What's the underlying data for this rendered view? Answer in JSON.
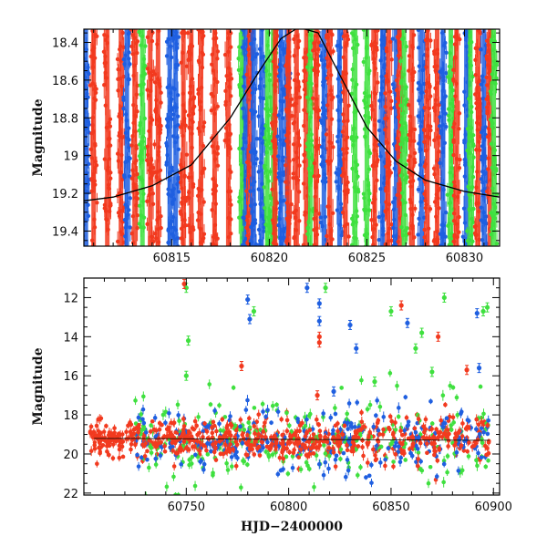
{
  "chart_data": [
    {
      "type": "scatter",
      "title": "",
      "xlabel": "",
      "ylabel": "Magnitude",
      "xlim": [
        60810.5,
        60831.8
      ],
      "ylim": [
        19.48,
        18.33
      ],
      "y_inverted": true,
      "x_ticks": [
        60815,
        60820,
        60825,
        60830
      ],
      "x_tick_labels": [
        "60815",
        "60820",
        "60825",
        "60830"
      ],
      "y_ticks": [
        18.4,
        18.6,
        18.8,
        19,
        19.2,
        19.4
      ],
      "y_tick_labels": [
        "18.4",
        "18.6",
        "18.8",
        "19",
        "19.2",
        "19.4"
      ],
      "model_curve": {
        "color": "#000000",
        "points": [
          [
            60810.5,
            19.24
          ],
          [
            60812,
            19.22
          ],
          [
            60814,
            19.16
          ],
          [
            60816,
            19.05
          ],
          [
            60818,
            18.8
          ],
          [
            60819.5,
            18.55
          ],
          [
            60820.6,
            18.38
          ],
          [
            60821.5,
            18.32
          ],
          [
            60822.5,
            18.35
          ],
          [
            60823.5,
            18.55
          ],
          [
            60825,
            18.85
          ],
          [
            60826.5,
            19.03
          ],
          [
            60828,
            19.13
          ],
          [
            60830,
            19.19
          ],
          [
            60831.8,
            19.22
          ]
        ]
      },
      "series": [
        {
          "name": "",
          "color": "#1f5fe0",
          "x": [
            60810.6,
            60812.7,
            60814.9,
            60815.2,
            60818.8,
            60819.2,
            60819.6,
            60820.6,
            60820.9,
            60822.8,
            60823.6,
            60825.8,
            60826.5,
            60827.8,
            60828.9,
            60830.1,
            60831.0
          ]
        },
        {
          "name": "",
          "color": "#3fe03f",
          "x": [
            60813.5,
            60818.6,
            60819.9,
            60820.2,
            60822.1,
            60824.4,
            60825.0,
            60826.9,
            60829.3,
            60830.3,
            60831.5
          ]
        },
        {
          "name": "",
          "color": "#f23a1f",
          "x": [
            60811.0,
            60811.7,
            60812.4,
            60813.1,
            60813.9,
            60814.3,
            60815.6,
            60816.0,
            60816.5,
            60817.2,
            60817.9,
            60819.0,
            60820.3,
            60821.0,
            60821.4,
            60821.9,
            60822.4,
            60823.1,
            60823.9,
            60825.4,
            60826.1,
            60826.7,
            60827.3,
            60828.1,
            60828.6,
            60829.6,
            60830.7,
            60831.3
          ]
        }
      ]
    },
    {
      "type": "scatter",
      "title": "",
      "xlabel": "HJD−2400000",
      "ylabel": "Magnitude",
      "xlim": [
        60700,
        60903
      ],
      "ylim": [
        22.1,
        11.0
      ],
      "y_inverted": true,
      "x_ticks": [
        60750,
        60800,
        60850,
        60900
      ],
      "x_tick_labels": [
        "60750",
        "60800",
        "60850",
        "60900"
      ],
      "y_ticks": [
        12,
        14,
        16,
        18,
        20,
        22
      ],
      "y_tick_labels": [
        "12",
        "14",
        "16",
        "18",
        "20",
        "22"
      ],
      "baseline": {
        "x_start": 60705,
        "x_end": 60898,
        "mag_start": 19.2,
        "mag_end": 19.3
      },
      "series": [
        {
          "name": "",
          "color": "#1f5fe0",
          "x_range": [
            60725,
            60898
          ],
          "mag_spread": 1.4,
          "outliers": [
            [
              60780,
              12.1
            ],
            [
              60781,
              13.1
            ],
            [
              60809,
              11.5
            ],
            [
              60815,
              12.3
            ],
            [
              60815,
              13.2
            ],
            [
              60830,
              13.4
            ],
            [
              60833,
              14.6
            ],
            [
              60858,
              13.3
            ],
            [
              60892,
              12.8
            ],
            [
              60893,
              15.6
            ],
            [
              60822,
              16.8
            ]
          ]
        },
        {
          "name": "",
          "color": "#3fe03f",
          "x_range": [
            60725,
            60898
          ],
          "mag_spread": 1.8,
          "outliers": [
            [
              60750,
              11.5
            ],
            [
              60751,
              14.2
            ],
            [
              60783,
              12.7
            ],
            [
              60818,
              11.5
            ],
            [
              60850,
              12.7
            ],
            [
              60862,
              14.6
            ],
            [
              60865,
              13.8
            ],
            [
              60876,
              12.0
            ],
            [
              60895,
              12.7
            ],
            [
              60897,
              12.5
            ],
            [
              60750,
              16.0
            ],
            [
              60842,
              16.3
            ],
            [
              60870,
              15.8
            ]
          ]
        },
        {
          "name": "",
          "color": "#f23a1f",
          "x_range": [
            60703,
            60898
          ],
          "mag_spread": 1.0,
          "outliers": [
            [
              60749,
              11.3
            ],
            [
              60777,
              15.5
            ],
            [
              60815,
              14.3
            ],
            [
              60815,
              14.0
            ],
            [
              60855,
              12.4
            ],
            [
              60873,
              14.0
            ],
            [
              60887,
              15.7
            ],
            [
              60814,
              17.0
            ]
          ]
        }
      ]
    }
  ]
}
